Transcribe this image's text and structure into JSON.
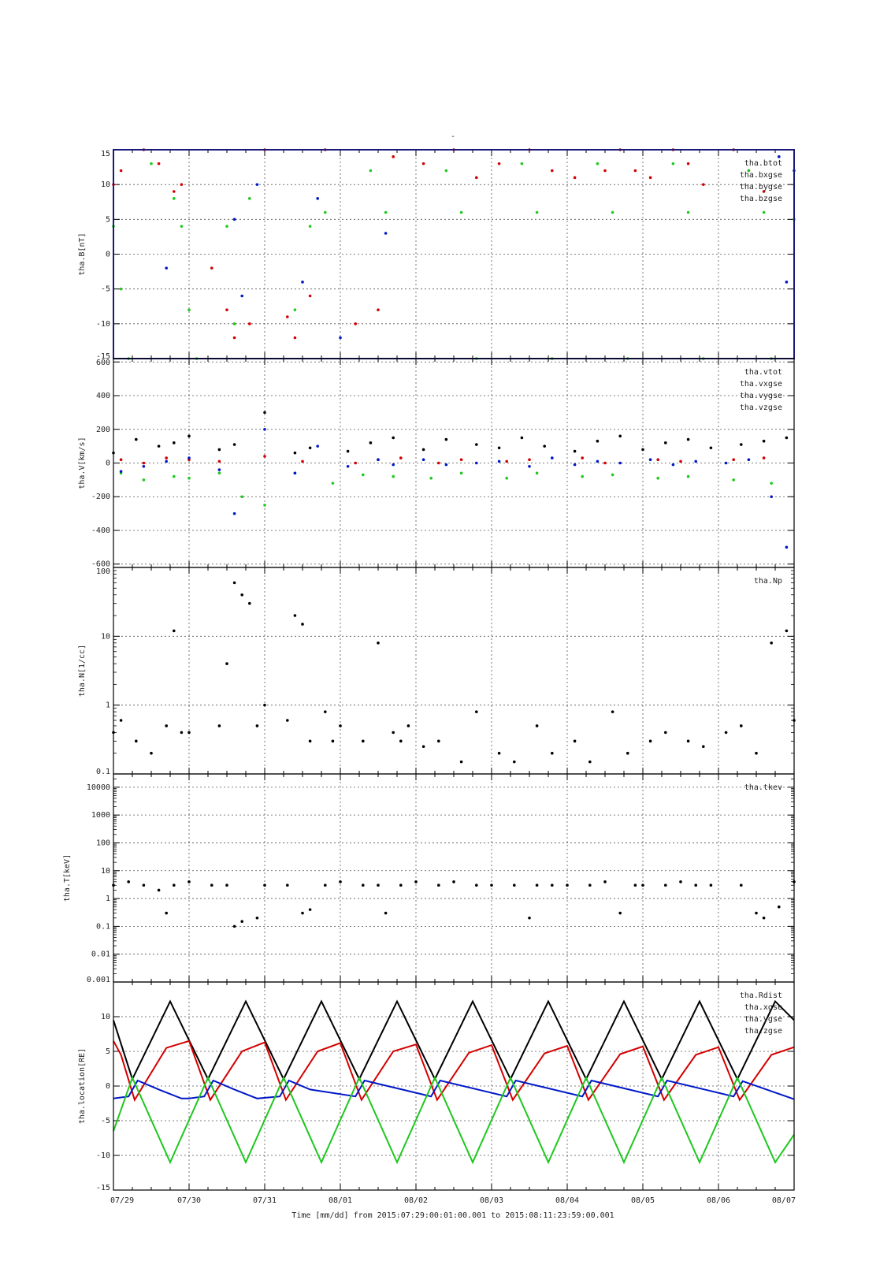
{
  "title": "-",
  "footer": "Time [mm/dd]  from 2015:07:29:00:01:00.001  to  2015:08:11:23:59:00.001",
  "x_ticks": [
    "07/29",
    "07/30",
    "07/31",
    "08/01",
    "08/02",
    "08/03",
    "08/04",
    "08/05",
    "08/06",
    "08/07"
  ],
  "colors": {
    "black": "#000000",
    "red": "#d40000",
    "green": "#1ec81e",
    "blue": "#0018c8",
    "frame": "#1a1a7a"
  },
  "chart_data": [
    {
      "type": "scatter",
      "ylabel": "tha.B[nT]",
      "ylim": [
        -15,
        15
      ],
      "scale": "linear",
      "yticks": [
        15,
        10,
        5,
        0,
        -5,
        -10,
        -15
      ],
      "ytick_labels": [
        "15",
        "10",
        "5",
        "0",
        "-5",
        "-10",
        "-15"
      ],
      "legend": [
        "tha.btot",
        "tha.bxgse",
        "tha.bygse",
        "tha.bzgse"
      ],
      "series": [
        {
          "name": "tha.btot",
          "color": "red",
          "x": [
            0.0,
            0.1,
            0.4,
            0.6,
            0.8,
            0.9,
            1.3,
            1.5,
            1.6,
            1.8,
            2.0,
            2.3,
            2.4,
            2.6,
            2.8,
            3.2,
            3.5,
            3.7,
            4.1,
            4.5,
            4.8,
            5.1,
            5.5,
            5.8,
            6.1,
            6.5,
            6.7,
            6.9,
            7.1,
            7.4,
            7.6,
            7.8,
            8.2,
            8.4,
            8.6
          ],
          "y": [
            10,
            12,
            15,
            13,
            9,
            10,
            -2,
            -8,
            -12,
            -10,
            15,
            -9,
            -12,
            -6,
            15,
            -10,
            -8,
            14,
            13,
            15,
            11,
            13,
            15,
            12,
            11,
            12,
            15,
            12,
            11,
            15,
            13,
            10,
            15,
            12,
            9
          ]
        },
        {
          "name": "tha.bzgse",
          "color": "green",
          "x": [
            0.0,
            0.1,
            0.2,
            0.5,
            0.8,
            0.9,
            1.0,
            1.1,
            1.5,
            1.6,
            1.8,
            2.4,
            2.6,
            2.8,
            3.4,
            3.6,
            4.4,
            4.6,
            4.8,
            5.4,
            5.6,
            5.8,
            6.4,
            6.6,
            6.8,
            7.4,
            7.6,
            7.8,
            8.4,
            8.6,
            8.7,
            9.0
          ],
          "y": [
            4,
            -5,
            -15,
            13,
            8,
            4,
            -8,
            -15,
            4,
            -10,
            8,
            -8,
            4,
            6,
            12,
            6,
            12,
            6,
            -15,
            13,
            6,
            -15,
            13,
            6,
            -15,
            13,
            6,
            -15,
            12,
            6,
            -15,
            5
          ]
        },
        {
          "name": "tha.bygse",
          "color": "blue",
          "x": [
            0.7,
            1.6,
            1.7,
            1.9,
            2.5,
            2.7,
            3.0,
            3.6,
            8.8,
            8.9,
            9.0
          ],
          "y": [
            -2,
            5,
            -6,
            10,
            -4,
            8,
            -12,
            3,
            14,
            -4,
            12
          ]
        },
        {
          "name": "tha.bxgse",
          "color": "black",
          "x": [],
          "y": []
        }
      ]
    },
    {
      "type": "scatter",
      "ylabel": "tha.V[km/s]",
      "ylim": [
        -620,
        620
      ],
      "scale": "linear",
      "yticks": [
        600,
        400,
        200,
        0,
        -200,
        -400,
        -600
      ],
      "ytick_labels": [
        "600",
        "400",
        "200",
        "0",
        "-200",
        "-400",
        "-600"
      ],
      "legend": [
        "tha.vtot",
        "tha.vxgse",
        "tha.vygse",
        "tha.vzgse"
      ],
      "series": [
        {
          "name": "tha.vtot",
          "color": "black",
          "x": [
            0.0,
            0.3,
            0.6,
            0.8,
            1.0,
            1.4,
            1.6,
            2.0,
            2.4,
            2.6,
            3.1,
            3.4,
            3.7,
            4.1,
            4.4,
            4.8,
            5.1,
            5.4,
            5.7,
            6.1,
            6.4,
            6.7,
            7.0,
            7.3,
            7.6,
            7.9,
            8.3,
            8.6,
            8.9
          ],
          "y": [
            60,
            140,
            100,
            120,
            160,
            80,
            110,
            300,
            60,
            90,
            70,
            120,
            150,
            80,
            140,
            110,
            90,
            150,
            100,
            70,
            130,
            160,
            80,
            120,
            140,
            90,
            110,
            130,
            150
          ]
        },
        {
          "name": "tha.vxgse",
          "color": "red",
          "x": [
            0.1,
            0.4,
            0.7,
            1.0,
            1.4,
            2.0,
            2.5,
            3.2,
            3.5,
            3.8,
            4.3,
            4.6,
            5.2,
            5.5,
            6.2,
            6.5,
            7.2,
            7.5,
            8.2,
            8.6
          ],
          "y": [
            20,
            0,
            30,
            20,
            10,
            40,
            10,
            0,
            20,
            30,
            0,
            20,
            10,
            20,
            30,
            0,
            20,
            10,
            20,
            30
          ]
        },
        {
          "name": "tha.vygse",
          "color": "green",
          "x": [
            0.1,
            0.4,
            0.8,
            1.0,
            1.4,
            1.7,
            2.0,
            2.4,
            2.9,
            3.3,
            3.7,
            4.2,
            4.6,
            5.2,
            5.6,
            6.2,
            6.6,
            7.2,
            7.6,
            8.2,
            8.7
          ],
          "y": [
            -60,
            -100,
            -80,
            -90,
            -60,
            -200,
            -250,
            -60,
            -120,
            -70,
            -80,
            -90,
            -60,
            -90,
            -60,
            -80,
            -70,
            -90,
            -80,
            -100,
            -120
          ]
        },
        {
          "name": "tha.vzgse",
          "color": "blue",
          "x": [
            0.1,
            0.4,
            0.7,
            1.0,
            1.4,
            1.6,
            2.0,
            2.4,
            2.7,
            3.1,
            3.5,
            3.7,
            4.1,
            4.4,
            4.8,
            5.1,
            5.5,
            5.8,
            6.1,
            6.4,
            6.7,
            7.1,
            7.4,
            7.7,
            8.1,
            8.4,
            8.7,
            8.9
          ],
          "y": [
            -50,
            -20,
            10,
            30,
            -40,
            -300,
            200,
            -60,
            100,
            -20,
            20,
            -10,
            20,
            -10,
            0,
            10,
            -20,
            30,
            -10,
            10,
            0,
            20,
            -10,
            10,
            0,
            20,
            -200,
            -500
          ]
        }
      ]
    },
    {
      "type": "scatter",
      "ylabel": "tha.N[1/cc]",
      "ylim": [
        0.1,
        100
      ],
      "scale": "log",
      "yticks": [
        100,
        10,
        1,
        0.1
      ],
      "ytick_labels": [
        "100",
        "10",
        "1",
        "0.1"
      ],
      "legend": [
        "tha.Np"
      ],
      "series": [
        {
          "name": "tha.Np",
          "color": "black",
          "x": [
            0.0,
            0.1,
            0.3,
            0.5,
            0.7,
            0.8,
            0.9,
            1.0,
            1.4,
            1.5,
            1.6,
            1.7,
            1.8,
            1.9,
            2.0,
            2.3,
            2.4,
            2.5,
            2.6,
            2.8,
            2.9,
            3.0,
            3.3,
            3.5,
            3.7,
            3.8,
            3.9,
            4.1,
            4.3,
            4.6,
            4.8,
            5.1,
            5.3,
            5.6,
            5.8,
            6.1,
            6.3,
            6.6,
            6.8,
            7.1,
            7.3,
            7.6,
            7.8,
            8.1,
            8.3,
            8.5,
            8.7,
            8.9,
            9.0
          ],
          "y": [
            0.4,
            0.6,
            0.3,
            0.2,
            0.5,
            12,
            0.4,
            0.4,
            0.5,
            4,
            60,
            40,
            30,
            0.5,
            1,
            0.6,
            20,
            15,
            0.3,
            0.8,
            0.3,
            0.5,
            0.3,
            8,
            0.4,
            0.3,
            0.5,
            0.25,
            0.3,
            0.15,
            0.8,
            0.2,
            0.15,
            0.5,
            0.2,
            0.3,
            0.15,
            0.8,
            0.2,
            0.3,
            0.4,
            0.3,
            0.25,
            0.4,
            0.5,
            0.2,
            8,
            12,
            0.6
          ]
        }
      ]
    },
    {
      "type": "scatter",
      "ylabel": "tha.T[keV]",
      "ylim": [
        0.001,
        30000
      ],
      "scale": "log",
      "yticks": [
        10000,
        1000,
        100,
        10,
        1,
        0.1,
        0.01,
        0.001
      ],
      "ytick_labels": [
        "10000",
        "1000",
        "100",
        "10",
        "1",
        "0.1",
        "0.01",
        "0.001"
      ],
      "legend": [
        "tha.tkev"
      ],
      "series": [
        {
          "name": "tha.tkev",
          "color": "black",
          "x": [
            0.0,
            0.2,
            0.4,
            0.6,
            0.7,
            0.8,
            1.0,
            1.3,
            1.5,
            1.6,
            1.7,
            1.9,
            2.0,
            2.3,
            2.5,
            2.6,
            2.8,
            3.0,
            3.3,
            3.5,
            3.6,
            3.8,
            4.0,
            4.3,
            4.5,
            4.8,
            5.0,
            5.3,
            5.5,
            5.6,
            5.8,
            6.0,
            6.3,
            6.5,
            6.7,
            6.9,
            7.0,
            7.3,
            7.5,
            7.7,
            7.9,
            8.3,
            8.5,
            8.6,
            8.8,
            9.0
          ],
          "y": [
            3,
            4,
            3,
            2,
            0.3,
            3,
            4,
            3,
            3,
            0.1,
            0.15,
            0.2,
            3,
            3,
            0.3,
            0.4,
            3,
            4,
            3,
            3,
            0.3,
            3,
            4,
            3,
            4,
            3,
            3,
            3,
            0.2,
            3,
            3,
            3,
            3,
            4,
            0.3,
            3,
            3,
            3,
            4,
            3,
            3,
            3,
            0.3,
            0.2,
            0.5,
            4
          ]
        }
      ]
    },
    {
      "type": "line",
      "ylabel": "tha.location[RE]",
      "ylim": [
        -15,
        15
      ],
      "scale": "linear",
      "yticks": [
        10,
        5,
        0,
        -5,
        -10,
        -15
      ],
      "ytick_labels": [
        "10",
        "5",
        "0",
        "-5",
        "-10",
        "-15"
      ],
      "legend": [
        "tha.Rdist",
        "tha.xgse",
        "tha.ygse",
        "tha.zgse"
      ],
      "series": [
        {
          "name": "tha.Rdist",
          "color": "black",
          "x": [
            0.0,
            0.25,
            0.75,
            1.25,
            1.75,
            2.25,
            2.75,
            3.25,
            3.75,
            4.25,
            4.75,
            5.25,
            5.75,
            6.25,
            6.75,
            7.25,
            7.75,
            8.25,
            8.75,
            9.0
          ],
          "y": [
            9.5,
            1.0,
            12.2,
            1.0,
            12.2,
            1.0,
            12.2,
            1.0,
            12.2,
            1.0,
            12.2,
            1.0,
            12.2,
            1.0,
            12.2,
            1.0,
            12.2,
            1.0,
            12.2,
            9.5
          ]
        },
        {
          "name": "tha.xgse",
          "color": "red",
          "x": [
            0.0,
            0.1,
            0.28,
            0.7,
            1.0,
            1.28,
            1.7,
            2.0,
            2.28,
            2.7,
            3.0,
            3.28,
            3.7,
            4.0,
            4.28,
            4.7,
            5.0,
            5.28,
            5.7,
            6.0,
            6.28,
            6.7,
            7.0,
            7.28,
            7.7,
            8.0,
            8.28,
            8.7,
            9.0
          ],
          "y": [
            6.5,
            4.5,
            -2,
            5.5,
            6.5,
            -2,
            5.0,
            6.3,
            -2,
            5.0,
            6.2,
            -2,
            5.0,
            6.0,
            -2,
            4.8,
            5.9,
            -2,
            4.7,
            5.8,
            -2,
            4.6,
            5.7,
            -2,
            4.5,
            5.6,
            -2,
            4.5,
            5.6
          ]
        },
        {
          "name": "tha.ygse",
          "color": "blue",
          "x": [
            0.0,
            0.2,
            0.32,
            0.6,
            0.9,
            1.0,
            1.2,
            1.32,
            1.6,
            1.9,
            2.2,
            2.32,
            2.6,
            3.2,
            3.32,
            4.2,
            4.32,
            5.2,
            5.32,
            6.2,
            6.32,
            7.2,
            7.32,
            8.2,
            8.32,
            9.0
          ],
          "y": [
            -1.8,
            -1.5,
            0.8,
            -0.5,
            -1.8,
            -1.8,
            -1.5,
            0.8,
            -0.5,
            -1.8,
            -1.5,
            0.8,
            -0.5,
            -1.5,
            0.8,
            -1.5,
            0.8,
            -1.5,
            0.8,
            -1.5,
            0.8,
            -1.5,
            0.8,
            -1.5,
            0.7,
            -1.9
          ]
        },
        {
          "name": "tha.zgse",
          "color": "green",
          "x": [
            0.0,
            0.25,
            0.75,
            1.25,
            1.75,
            2.25,
            2.75,
            3.25,
            3.75,
            4.25,
            4.75,
            5.25,
            5.75,
            6.25,
            6.75,
            7.25,
            7.75,
            8.25,
            8.75,
            9.0
          ],
          "y": [
            -6.5,
            1.2,
            -11,
            1.2,
            -11,
            1.2,
            -11,
            1.2,
            -11,
            1.2,
            -11,
            1.2,
            -11,
            1.2,
            -11,
            1.2,
            -11,
            1.2,
            -11,
            -7
          ]
        }
      ]
    }
  ]
}
